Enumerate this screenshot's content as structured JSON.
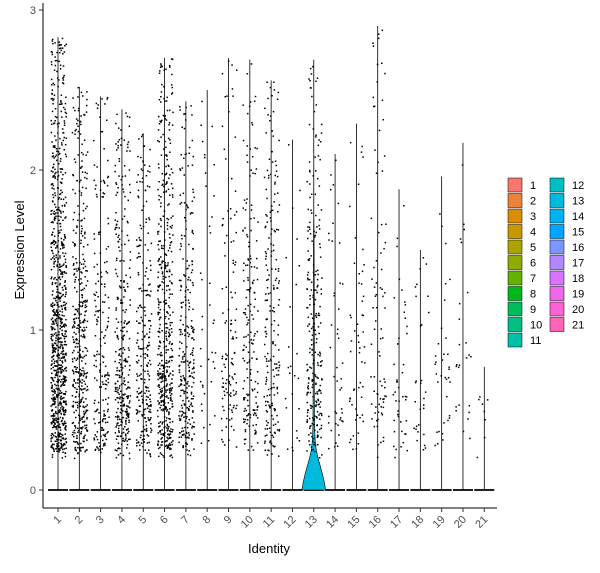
{
  "chart_data": {
    "type": "violin",
    "title": "",
    "xlabel": "Identity",
    "ylabel": "Expression Level",
    "ylim": [
      0,
      3
    ],
    "yticks": [
      0,
      1,
      2,
      3
    ],
    "categories": [
      "1",
      "2",
      "3",
      "4",
      "5",
      "6",
      "7",
      "8",
      "9",
      "10",
      "11",
      "12",
      "13",
      "14",
      "15",
      "16",
      "17",
      "18",
      "19",
      "20",
      "21"
    ],
    "colors": [
      "#F8766D",
      "#EC8239",
      "#DB8E00",
      "#C79800",
      "#AEA200",
      "#8FAA00",
      "#64B200",
      "#00B81B",
      "#00BD5C",
      "#00C085",
      "#00C1A7",
      "#00BFC4",
      "#00BADE",
      "#00B2F3",
      "#00A6FF",
      "#7C96FF",
      "#B385FF",
      "#D874FD",
      "#EF67EB",
      "#FD61D3",
      "#FF63B6"
    ],
    "max_expression": [
      2.83,
      2.52,
      2.46,
      2.38,
      2.23,
      2.7,
      2.43,
      2.5,
      2.7,
      2.69,
      2.56,
      2.19,
      2.69,
      2.1,
      2.29,
      2.9,
      1.88,
      1.5,
      1.96,
      2.17,
      0.77
    ],
    "dot_counts": [
      900,
      420,
      190,
      330,
      260,
      520,
      280,
      40,
      120,
      180,
      210,
      25,
      260,
      45,
      55,
      85,
      45,
      30,
      35,
      25,
      8
    ],
    "violin_13_shape": {
      "y": [
        0,
        0.05,
        0.1,
        0.15,
        0.2,
        0.25,
        0.3,
        0.35,
        0.4,
        0.5,
        0.6,
        0.8,
        1.0,
        1.2,
        1.4,
        1.6,
        1.7
      ],
      "half_width": [
        0.62,
        0.55,
        0.45,
        0.34,
        0.22,
        0.13,
        0.08,
        0.06,
        0.045,
        0.04,
        0.035,
        0.03,
        0.03,
        0.025,
        0.02,
        0.01,
        0
      ]
    },
    "legend": {
      "position": "right",
      "columns": [
        [
          "1",
          "2",
          "3",
          "4",
          "5",
          "6",
          "7",
          "8",
          "9",
          "10",
          "11"
        ],
        [
          "12",
          "13",
          "14",
          "15",
          "16",
          "17",
          "18",
          "19",
          "20",
          "21"
        ]
      ]
    },
    "grid": false
  }
}
